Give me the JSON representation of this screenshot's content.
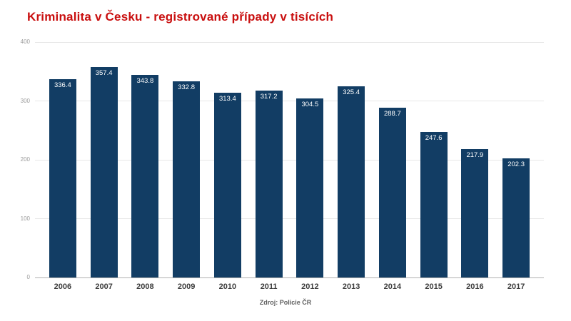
{
  "title": "Kriminalita v Česku - registrované případy v tisících",
  "source": "Zdroj: Policie ČR",
  "colors": {
    "background": "#ffffff",
    "title": "#c90f0f",
    "bar": "#123d64",
    "grid": "#e7e7e7",
    "axis_line": "#b0b0b0",
    "tick_label": "#9b9b9b",
    "year_label": "#3c3c3c",
    "value_label": "#ffffff",
    "source_label": "#5e5e5e"
  },
  "chart_data": {
    "type": "bar",
    "title": "Kriminalita v Česku - registrované případy v tisících",
    "categories": [
      "2006",
      "2007",
      "2008",
      "2009",
      "2010",
      "2011",
      "2012",
      "2013",
      "2014",
      "2015",
      "2016",
      "2017"
    ],
    "values": [
      336.4,
      357.4,
      343.8,
      332.8,
      313.4,
      317.2,
      304.5,
      325.4,
      288.7,
      247.6,
      217.9,
      202.3
    ],
    "xlabel": "",
    "ylabel": "",
    "ylim": [
      0,
      400
    ],
    "yticks": [
      0,
      100,
      200,
      300,
      400
    ],
    "grid": true,
    "legend": "none",
    "value_labels": "inside-top",
    "source": "Zdroj: Policie ČR"
  }
}
